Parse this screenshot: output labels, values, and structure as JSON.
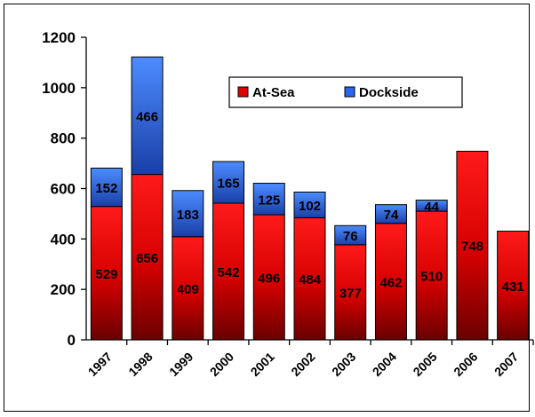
{
  "chart_data": {
    "type": "bar",
    "stacked": true,
    "categories": [
      "1997",
      "1998",
      "1999",
      "2000",
      "2001",
      "2002",
      "2003",
      "2004",
      "2005",
      "2006",
      "2007"
    ],
    "series": [
      {
        "name": "At-Sea",
        "values": [
          529,
          656,
          409,
          542,
          496,
          484,
          377,
          462,
          510,
          748,
          431
        ],
        "color": "#e00000"
      },
      {
        "name": "Dockside",
        "values": [
          152,
          466,
          183,
          165,
          125,
          102,
          76,
          74,
          44,
          null,
          null
        ],
        "color": "#2a66ee"
      }
    ],
    "yticks": [
      0,
      200,
      400,
      600,
      800,
      1000,
      1200
    ],
    "ylim": [
      0,
      1200
    ],
    "title": "",
    "xlabel": "",
    "ylabel": "",
    "legend_position": "top-right",
    "grid": false
  }
}
